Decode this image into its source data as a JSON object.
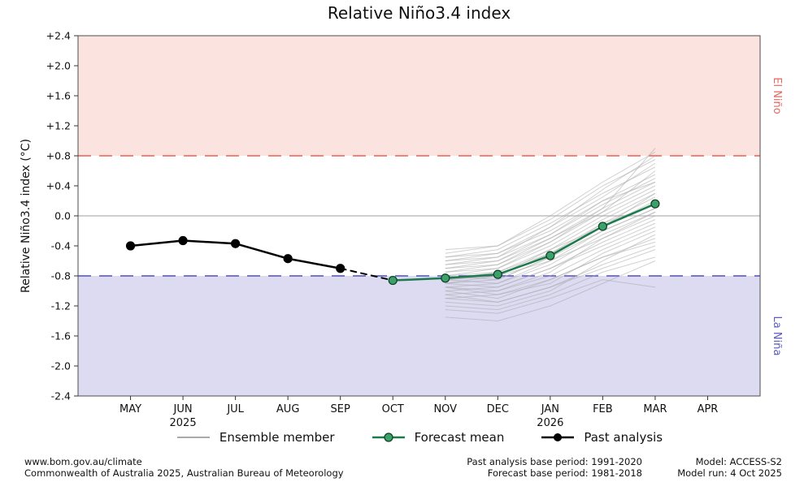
{
  "chart_data": {
    "type": "line",
    "title": "Relative Niño3.4 index",
    "ylabel": "Relative Niño3.4 index (°C)",
    "ylim": [
      -2.4,
      2.4
    ],
    "y_tick_labels": [
      "+2.4",
      "+2.0",
      "+1.6",
      "+1.2",
      "+0.8",
      "+0.4",
      "0.0",
      "-0.4",
      "-0.8",
      "-1.2",
      "-1.6",
      "-2.0",
      "-2.4"
    ],
    "x_categories": [
      "MAY",
      "JUN",
      "JUL",
      "AUG",
      "SEP",
      "OCT",
      "NOV",
      "DEC",
      "JAN",
      "FEB",
      "MAR",
      "APR"
    ],
    "x_year_labels": [
      {
        "index": 1,
        "label": "2025"
      },
      {
        "index": 8,
        "label": "2026"
      }
    ],
    "grid": false,
    "regions": [
      {
        "name": "El Niño",
        "from": 0.8,
        "to": 2.4,
        "color": "#fbe3df",
        "label_color": "#e06a62"
      },
      {
        "name": "La Niña",
        "from": -2.4,
        "to": -0.8,
        "color": "#dcdbf2",
        "label_color": "#5b5bc0"
      }
    ],
    "threshold_lines": [
      {
        "value": 0.8,
        "color": "#ef5d52",
        "style": "dashed"
      },
      {
        "value": -0.8,
        "color": "#4f4fc4",
        "style": "dashed"
      },
      {
        "value": 0,
        "color": "#bfbfbf",
        "style": "solid"
      }
    ],
    "series": [
      {
        "name": "Past analysis",
        "color": "#000000",
        "width": 2.5,
        "dashed": false,
        "markers": true,
        "marker_fill": "#000000",
        "marker_stroke": "#000000",
        "x": [
          "MAY",
          "JUN",
          "JUL",
          "AUG",
          "SEP"
        ],
        "values": [
          -0.4,
          -0.33,
          -0.37,
          -0.57,
          -0.7
        ]
      },
      {
        "name": "Past analysis provisional",
        "color": "#000000",
        "width": 2,
        "dashed": true,
        "markers": false,
        "x": [
          "SEP",
          "OCT"
        ],
        "values": [
          -0.7,
          -0.86
        ]
      },
      {
        "name": "Forecast mean",
        "color": "#1d7a4d",
        "width": 2.5,
        "dashed": false,
        "markers": true,
        "marker_fill": "#3ca06a",
        "marker_stroke": "#0e3d23",
        "x": [
          "OCT",
          "NOV",
          "DEC",
          "JAN",
          "FEB",
          "MAR"
        ],
        "values": [
          -0.86,
          -0.83,
          -0.78,
          -0.53,
          -0.14,
          0.16
        ]
      }
    ],
    "ensemble": {
      "name": "Ensemble member",
      "color": "#aaaaaa",
      "x": [
        "NOV",
        "DEC",
        "JAN",
        "FEB",
        "MAR"
      ],
      "members": [
        [
          -0.95,
          -1.05,
          -0.85,
          -0.55,
          -0.3
        ],
        [
          -0.75,
          -0.65,
          -0.35,
          0.05,
          0.4
        ],
        [
          -0.85,
          -0.8,
          -0.6,
          -0.2,
          0.1
        ],
        [
          -1.1,
          -1.15,
          -0.95,
          -0.7,
          -0.45
        ],
        [
          -0.6,
          -0.5,
          -0.2,
          0.2,
          0.55
        ],
        [
          -0.9,
          -0.85,
          -0.55,
          -0.1,
          0.25
        ],
        [
          -1.25,
          -1.3,
          -1.1,
          -0.85,
          -0.95
        ],
        [
          -0.7,
          -0.6,
          -0.3,
          0.1,
          0.45
        ],
        [
          -0.8,
          -0.75,
          -0.45,
          -0.05,
          0.3
        ],
        [
          -1.0,
          -0.95,
          -0.7,
          -0.35,
          -0.05
        ],
        [
          -0.55,
          -0.45,
          -0.1,
          0.3,
          0.65
        ],
        [
          -0.85,
          -0.9,
          -0.65,
          -0.25,
          0.05
        ],
        [
          -1.15,
          -1.2,
          -1.0,
          -0.6,
          -0.25
        ],
        [
          -0.65,
          -0.55,
          -0.25,
          0.15,
          0.5
        ],
        [
          -0.9,
          -0.8,
          -0.5,
          -0.15,
          0.2
        ],
        [
          -1.05,
          -1.0,
          -0.8,
          -0.45,
          -0.15
        ],
        [
          -0.5,
          -0.4,
          -0.05,
          0.4,
          0.75
        ],
        [
          -0.8,
          -0.7,
          -0.4,
          0.0,
          0.35
        ],
        [
          -1.2,
          -1.25,
          -1.05,
          -0.75,
          -0.55
        ],
        [
          -0.7,
          -0.65,
          -0.3,
          0.05,
          0.6
        ],
        [
          -0.95,
          -0.9,
          -0.6,
          -0.3,
          0.0
        ],
        [
          -0.6,
          -0.55,
          -0.15,
          0.25,
          0.7
        ],
        [
          -0.85,
          -0.75,
          -0.5,
          -0.1,
          0.15
        ],
        [
          -1.1,
          -1.05,
          -0.9,
          -0.5,
          -0.2
        ],
        [
          -0.75,
          -0.7,
          -0.35,
          0.1,
          0.9
        ],
        [
          -0.9,
          -0.95,
          -0.7,
          -0.4,
          -0.1
        ],
        [
          -0.55,
          -0.5,
          -0.15,
          0.35,
          0.8
        ],
        [
          -1.0,
          -1.1,
          -0.85,
          -0.55,
          -0.35
        ],
        [
          -0.8,
          -0.85,
          -0.55,
          -0.2,
          0.1
        ],
        [
          -1.35,
          -1.4,
          -1.2,
          -0.9,
          -0.6
        ],
        [
          -0.65,
          -0.6,
          -0.25,
          0.2,
          0.45
        ],
        [
          -0.95,
          -1.0,
          -0.75,
          -0.3,
          0.05
        ],
        [
          -0.45,
          -0.4,
          0.0,
          0.45,
          0.85
        ],
        [
          -0.85,
          -0.8,
          -0.45,
          -0.15,
          0.3
        ],
        [
          -1.05,
          -1.15,
          -0.95,
          -0.65,
          -0.4
        ]
      ]
    },
    "legend_position": "bottom"
  },
  "legend": {
    "ensemble": "Ensemble member",
    "forecast": "Forecast mean",
    "past": "Past analysis"
  },
  "footer": {
    "left_line1": "www.bom.gov.au/climate",
    "left_line2": "Commonwealth of Australia 2025, Australian Bureau of Meteorology",
    "center_line1": "Past analysis base period: 1991-2020",
    "center_line2": "Forecast base period: 1981-2018",
    "right_line1": "Model: ACCESS-S2",
    "right_line2": "Model run: 4 Oct 2025"
  }
}
